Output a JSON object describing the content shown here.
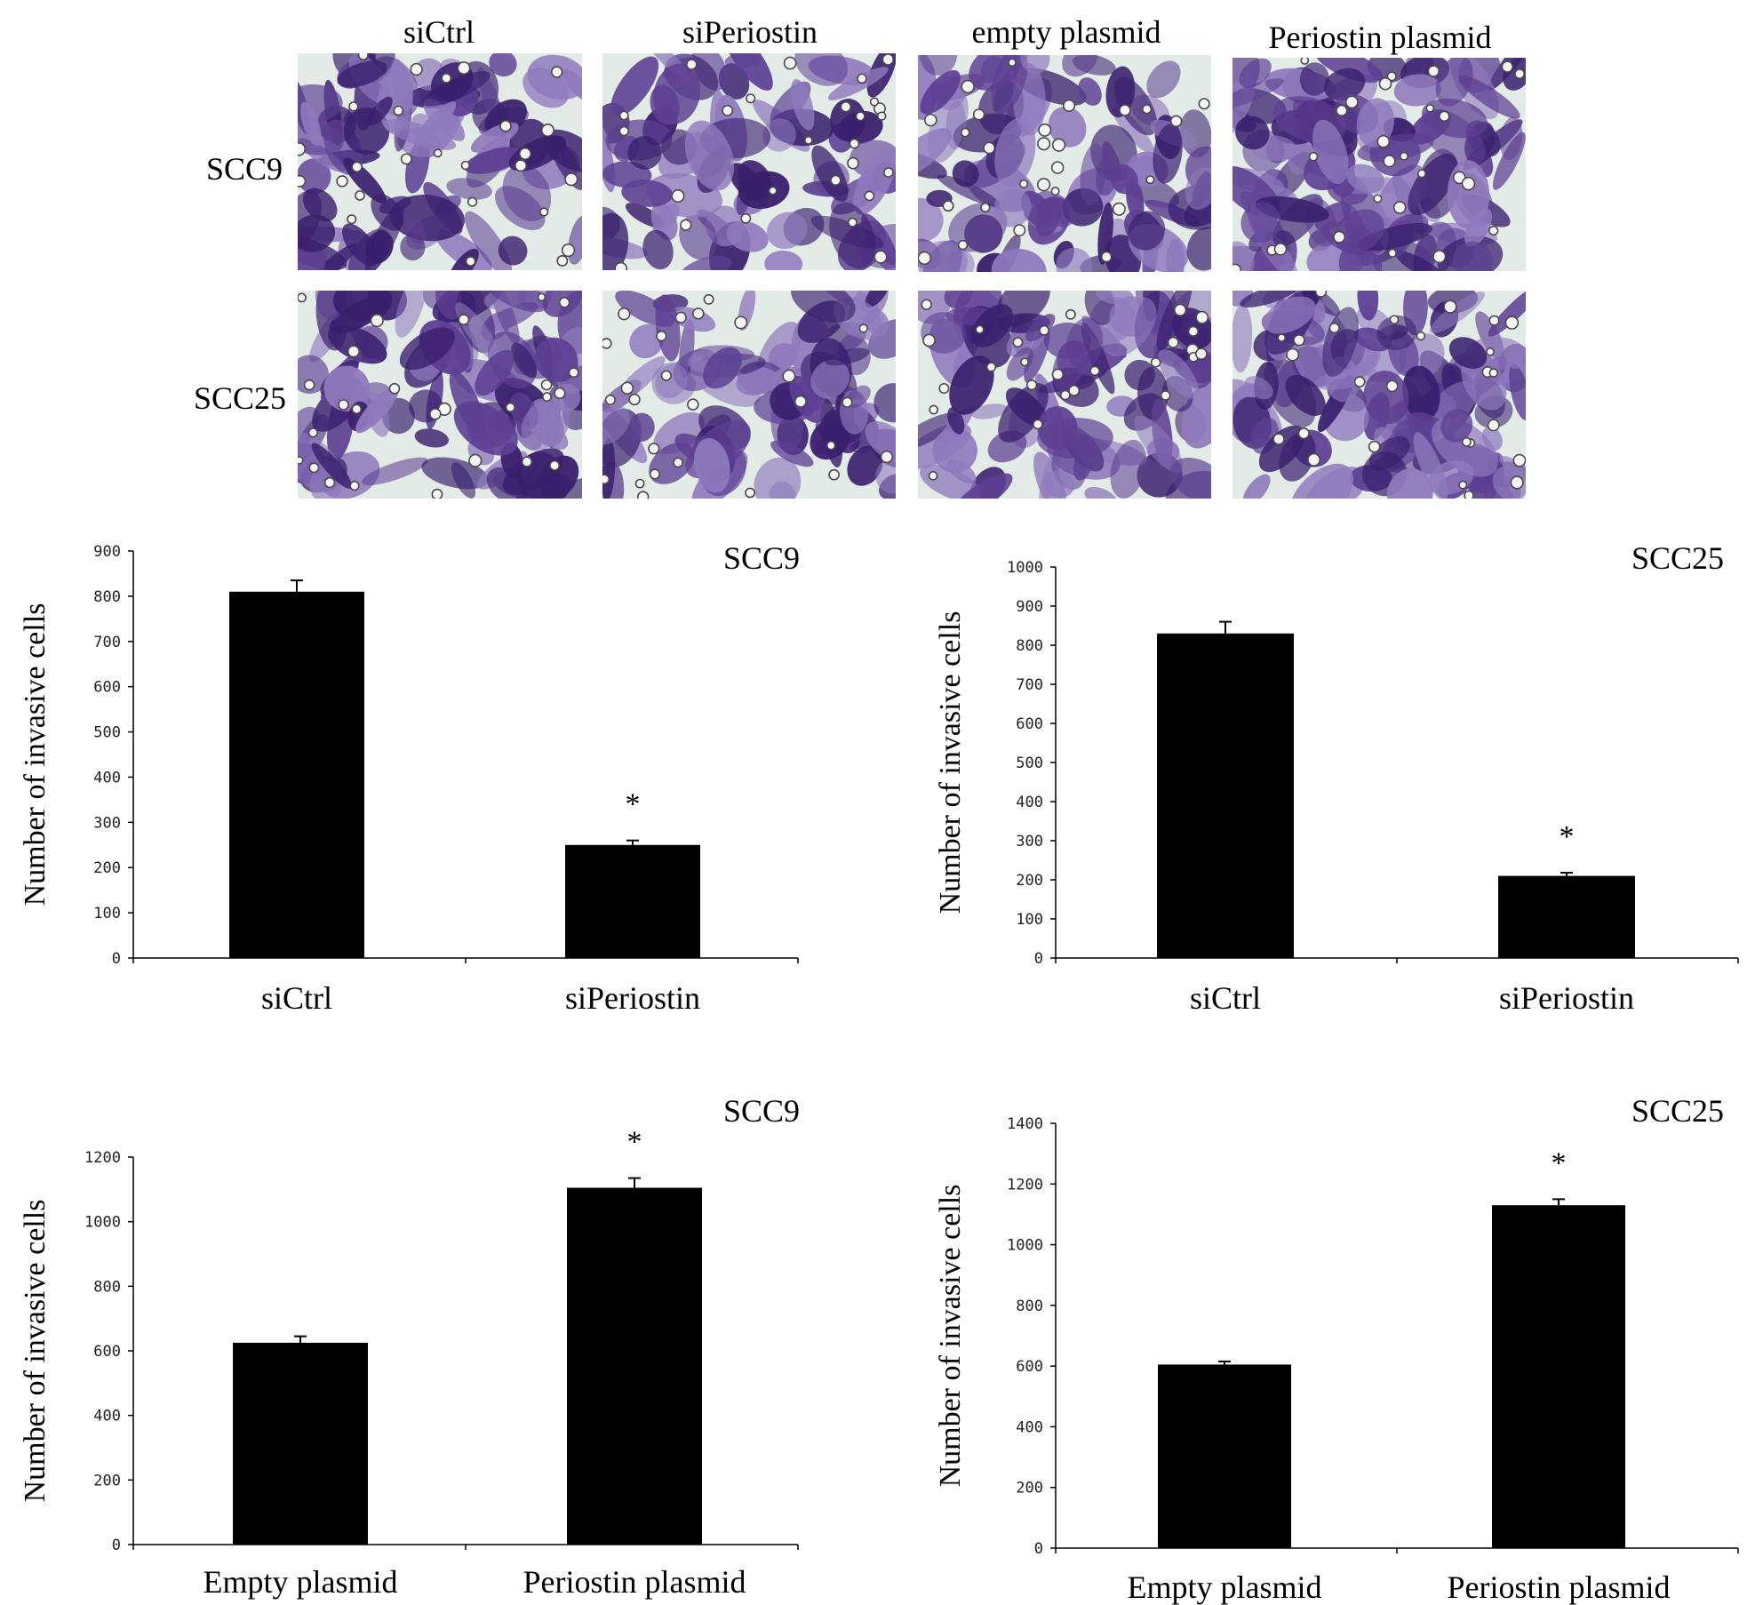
{
  "figure": {
    "column_labels": [
      "siCtrl",
      "siPeriostin",
      "empty plasmid",
      "Periostin plasmid"
    ],
    "row_labels": [
      "SCC9",
      "SCC25"
    ],
    "stain_colors": {
      "background": "#e2ebe6",
      "cell_dark": "#3a1f6e",
      "cell_mid": "#5d3f93",
      "cell_light": "#8f79bd",
      "bead": "#4a4a4a"
    }
  },
  "chart_data": [
    {
      "type": "bar",
      "title": "SCC9",
      "categories": [
        "siCtrl",
        "siPeriostin"
      ],
      "values": [
        810,
        250
      ],
      "errors": [
        25,
        10
      ],
      "significance": [
        "",
        "*"
      ],
      "ylabel": "Number of invasive cells",
      "xlabel": "",
      "ylim": [
        0,
        900
      ],
      "yticks": [
        0,
        100,
        200,
        300,
        400,
        500,
        600,
        700,
        800,
        900
      ],
      "bar_color": "#000000",
      "grid": false,
      "legend": "none"
    },
    {
      "type": "bar",
      "title": "SCC25",
      "categories": [
        "siCtrl",
        "siPeriostin"
      ],
      "values": [
        830,
        210
      ],
      "errors": [
        30,
        8
      ],
      "significance": [
        "",
        "*"
      ],
      "ylabel": "Number of invasive cells",
      "xlabel": "",
      "ylim": [
        0,
        1000
      ],
      "yticks": [
        0,
        100,
        200,
        300,
        400,
        500,
        600,
        700,
        800,
        900,
        1000
      ],
      "bar_color": "#000000",
      "grid": false,
      "legend": "none"
    },
    {
      "type": "bar",
      "title": "SCC9",
      "categories": [
        "Empty plasmid",
        "Periostin plasmid"
      ],
      "values": [
        625,
        1105
      ],
      "errors": [
        20,
        30
      ],
      "significance": [
        "",
        "*"
      ],
      "ylabel": "Number of invasive cells",
      "xlabel": "",
      "ylim": [
        0,
        1200
      ],
      "yticks": [
        0,
        200,
        400,
        600,
        800,
        1000,
        1200
      ],
      "bar_color": "#000000",
      "grid": false,
      "legend": "none"
    },
    {
      "type": "bar",
      "title": "SCC25",
      "categories": [
        "Empty plasmid",
        "Periostin plasmid"
      ],
      "values": [
        605,
        1130
      ],
      "errors": [
        10,
        20
      ],
      "significance": [
        "",
        "*"
      ],
      "ylabel": "Number of invasive cells",
      "xlabel": "",
      "ylim": [
        0,
        1400
      ],
      "yticks": [
        0,
        200,
        400,
        600,
        800,
        1000,
        1200,
        1400
      ],
      "bar_color": "#000000",
      "grid": false,
      "legend": "none"
    }
  ]
}
